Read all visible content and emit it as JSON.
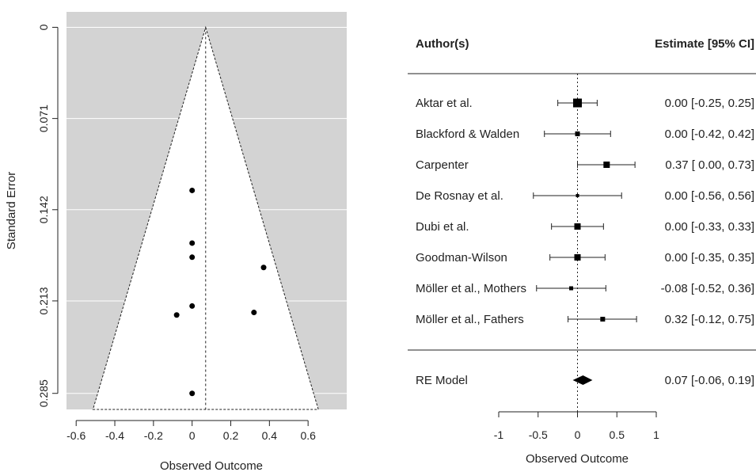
{
  "chart_data": [
    {
      "type": "scatter",
      "kind": "funnel plot",
      "xlabel": "Observed Outcome",
      "ylabel": "Standard Error",
      "xlim": [
        -0.65,
        0.8
      ],
      "ylim": [
        0.2975,
        -0.012
      ],
      "y_reversed": true,
      "x_ticks": [
        "-0.6",
        "-0.4",
        "-0.2",
        "0",
        "0.2",
        "0.4",
        "0.6"
      ],
      "y_ticks": [
        "0",
        "0.071",
        "0.142",
        "0.213",
        "0.285"
      ],
      "funnel_center": 0.07,
      "funnel_ci": 0.95,
      "grid": true,
      "background_color": "#d3d3d3",
      "funnel_fill": "#ffffff",
      "points": [
        {
          "x": 0.0,
          "y": 0.127
        },
        {
          "x": 0.0,
          "y": 0.168
        },
        {
          "x": 0.0,
          "y": 0.179
        },
        {
          "x": 0.37,
          "y": 0.187
        },
        {
          "x": 0.0,
          "y": 0.217
        },
        {
          "x": -0.08,
          "y": 0.224
        },
        {
          "x": 0.32,
          "y": 0.222
        },
        {
          "x": 0.0,
          "y": 0.285
        }
      ]
    },
    {
      "type": "forest",
      "header_left": "Author(s)",
      "header_right": "Estimate [95% CI]",
      "xlabel": "Observed Outcome",
      "xlim": [
        -1,
        1
      ],
      "x_ticks": [
        "-1",
        "-0.5",
        "0",
        "0.5",
        "1"
      ],
      "reference_line": 0,
      "studies": [
        {
          "label": "Aktar et al.",
          "est": 0.0,
          "lo": -0.25,
          "hi": 0.25,
          "text": "0.00 [-0.25, 0.25]",
          "weight": 11
        },
        {
          "label": "Blackford & Walden",
          "est": 0.0,
          "lo": -0.42,
          "hi": 0.42,
          "text": "0.00 [-0.42, 0.42]",
          "weight": 6
        },
        {
          "label": "Carpenter",
          "est": 0.37,
          "lo": 0.0,
          "hi": 0.73,
          "text": "0.37 [ 0.00, 0.73]",
          "weight": 8
        },
        {
          "label": "De Rosnay et al.",
          "est": 0.0,
          "lo": -0.56,
          "hi": 0.56,
          "text": "0.00 [-0.56, 0.56]",
          "weight": 4
        },
        {
          "label": "Dubi et al.",
          "est": 0.0,
          "lo": -0.33,
          "hi": 0.33,
          "text": "0.00 [-0.33, 0.33]",
          "weight": 8
        },
        {
          "label": "Goodman-Wilson",
          "est": 0.0,
          "lo": -0.35,
          "hi": 0.35,
          "text": "0.00 [-0.35, 0.35]",
          "weight": 8
        },
        {
          "label": "Möller et al., Mothers",
          "est": -0.08,
          "lo": -0.52,
          "hi": 0.36,
          "text": "-0.08 [-0.52, 0.36]",
          "weight": 5
        },
        {
          "label": "Möller et al., Fathers",
          "est": 0.32,
          "lo": -0.12,
          "hi": 0.75,
          "text": "0.32 [-0.12, 0.75]",
          "weight": 6
        }
      ],
      "summary": {
        "label": "RE Model",
        "est": 0.07,
        "lo": -0.06,
        "hi": 0.19,
        "text": "0.07 [-0.06, 0.19]"
      }
    }
  ]
}
